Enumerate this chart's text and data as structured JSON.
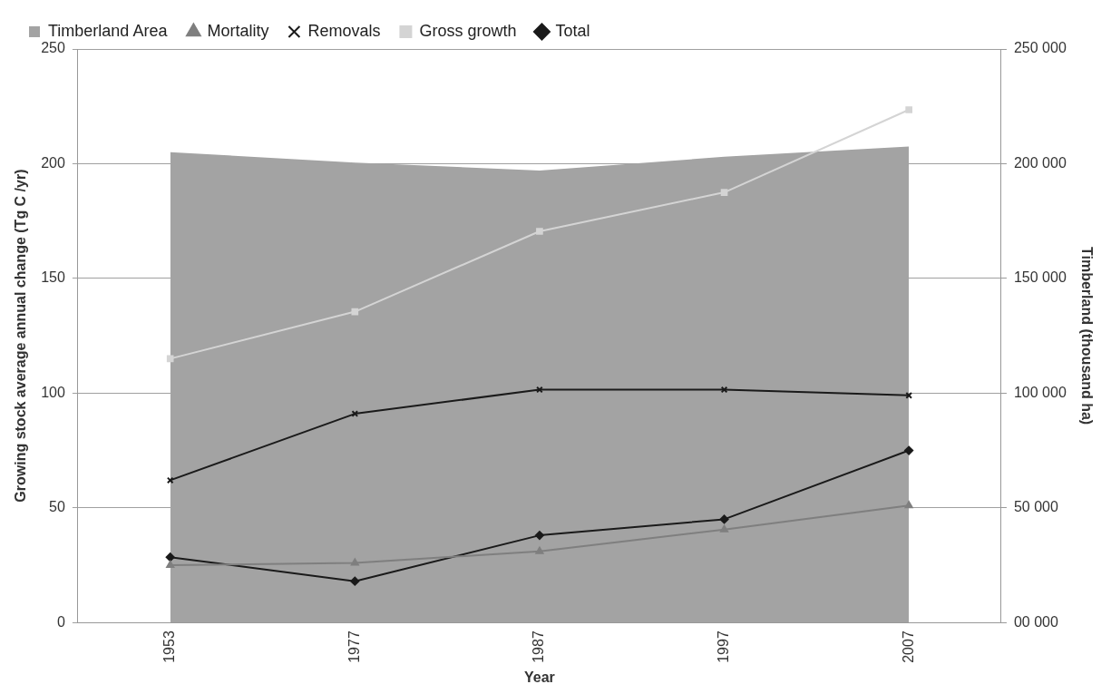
{
  "chart_data": {
    "type": "line",
    "xlabel": "Year",
    "ylabel": "Growing stock average annual change (Tg C /yr)",
    "y2label": "Timberland (thousand ha)",
    "categories": [
      "1953",
      "1977",
      "1987",
      "1997",
      "2007"
    ],
    "series": [
      {
        "name": "Timberland Area",
        "type": "area",
        "axis": "y2",
        "color": "#a3a3a3",
        "values": [
          205000,
          200500,
          197000,
          203000,
          207500
        ]
      },
      {
        "name": "Mortality",
        "color": "#7f7f7f",
        "marker": "triangle",
        "values": [
          25,
          26,
          31,
          40.5,
          51
        ]
      },
      {
        "name": "Removals",
        "color": "#1a1a1a",
        "marker": "cross",
        "values": [
          62,
          91,
          101.5,
          101.5,
          99
        ]
      },
      {
        "name": "Gross growth",
        "color": "#d4d4d4",
        "marker": "square",
        "values": [
          115,
          135.5,
          170.5,
          187.5,
          223.5
        ]
      },
      {
        "name": "Total",
        "color": "#1a1a1a",
        "marker": "diamond",
        "values": [
          28.5,
          18,
          38,
          45,
          75
        ]
      }
    ],
    "ylim": [
      0,
      250
    ],
    "yticks": [
      0,
      50,
      100,
      150,
      200,
      250
    ],
    "y2lim": [
      0,
      250000
    ],
    "y2ticks": [
      {
        "value": 0,
        "label": "00 000"
      },
      {
        "value": 50000,
        "label": "50 000"
      },
      {
        "value": 100000,
        "label": "100 000"
      },
      {
        "value": 150000,
        "label": "150 000"
      },
      {
        "value": 200000,
        "label": "200 000"
      },
      {
        "value": 250000,
        "label": "250 000"
      }
    ],
    "grid": "y",
    "legend": "top left"
  }
}
